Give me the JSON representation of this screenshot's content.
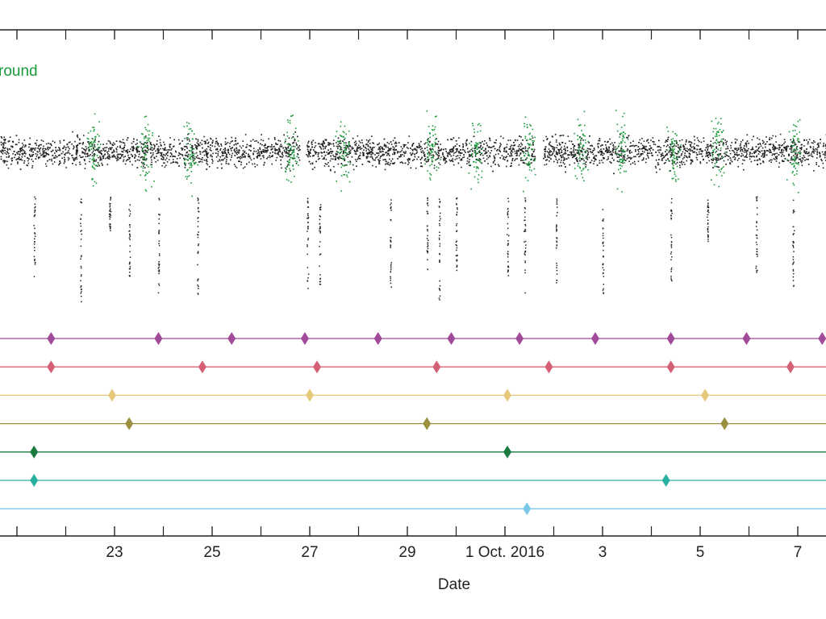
{
  "chart_data": {
    "type": "scatter",
    "xlabel": "Date",
    "x_range": [
      "2016-09-21",
      "2016-10-08"
    ],
    "x_ticks": [
      {
        "date": "2016-09-21",
        "label": ""
      },
      {
        "date": "2016-09-23",
        "label": "23"
      },
      {
        "date": "2016-09-25",
        "label": "25"
      },
      {
        "date": "2016-09-27",
        "label": "27"
      },
      {
        "date": "2016-09-29",
        "label": "29"
      },
      {
        "date": "2016-10-01",
        "label": "1 Oct. 2016"
      },
      {
        "date": "2016-10-03",
        "label": "3"
      },
      {
        "date": "2016-10-05",
        "label": "5"
      },
      {
        "date": "2016-10-07",
        "label": "7"
      }
    ],
    "legend": [
      {
        "label": "round",
        "color": "#1a9a3a"
      }
    ],
    "scatter_series": [
      {
        "color": "#222222",
        "band_center": 0.55,
        "band_spread": 0.35
      },
      {
        "color": "#1a9a3a",
        "band_center": 0.55,
        "band_spread": 0.6
      }
    ],
    "dips": [
      {
        "date": "2016-09-21.35",
        "depth": 0.45
      },
      {
        "date": "2016-09-22.3",
        "depth": 0.6
      },
      {
        "date": "2016-09-22.9",
        "depth": 0.2
      },
      {
        "date": "2016-09-23.3",
        "depth": 0.45
      },
      {
        "date": "2016-09-23.9",
        "depth": 0.55
      },
      {
        "date": "2016-09-24.7",
        "depth": 0.55
      },
      {
        "date": "2016-09-26.95",
        "depth": 0.55
      },
      {
        "date": "2016-09-27.2",
        "depth": 0.5
      },
      {
        "date": "2016-09-28.65",
        "depth": 0.52
      },
      {
        "date": "2016-09-29.4",
        "depth": 0.45
      },
      {
        "date": "2016-09-29.65",
        "depth": 0.6
      },
      {
        "date": "2016-09-30.0",
        "depth": 0.45
      },
      {
        "date": "2016-10-01.05",
        "depth": 0.45
      },
      {
        "date": "2016-10-01.4",
        "depth": 0.55
      },
      {
        "date": "2016-10-02.05",
        "depth": 0.5
      },
      {
        "date": "2016-10-03.0",
        "depth": 0.55
      },
      {
        "date": "2016-10-04.4",
        "depth": 0.55
      },
      {
        "date": "2016-10-05.15",
        "depth": 0.25
      },
      {
        "date": "2016-10-06.15",
        "depth": 0.45
      },
      {
        "date": "2016-10-06.9",
        "depth": 0.5
      },
      {
        "date": "2016-10-07.6",
        "depth": 0.5
      }
    ],
    "event_rows": [
      {
        "color": "#a04a9a",
        "dates": [
          "2016-09-21.7",
          "2016-09-23.9",
          "2016-09-25.4",
          "2016-09-26.9",
          "2016-09-28.4",
          "2016-09-29.9",
          "2016-10-01.3",
          "2016-10-02.85",
          "2016-10-04.4",
          "2016-10-05.95",
          "2016-10-07.5"
        ]
      },
      {
        "color": "#d46075",
        "dates": [
          "2016-09-21.7",
          "2016-09-24.8",
          "2016-09-27.15",
          "2016-09-29.6",
          "2016-10-01.9",
          "2016-10-04.4",
          "2016-10-06.85"
        ]
      },
      {
        "color": "#e5c87a",
        "dates": [
          "2016-09-22.95",
          "2016-09-27.0",
          "2016-10-01.05",
          "2016-10-05.1"
        ]
      },
      {
        "color": "#9a9040",
        "dates": [
          "2016-09-23.3",
          "2016-09-29.4",
          "2016-10-05.5"
        ]
      },
      {
        "color": "#1a7a40",
        "dates": [
          "2016-09-21.35",
          "2016-10-01.05"
        ]
      },
      {
        "color": "#2ab0a0",
        "dates": [
          "2016-09-21.35",
          "2016-10-04.3"
        ]
      },
      {
        "color": "#7ac8e5",
        "dates": [
          "2016-10-01.45"
        ]
      }
    ]
  }
}
